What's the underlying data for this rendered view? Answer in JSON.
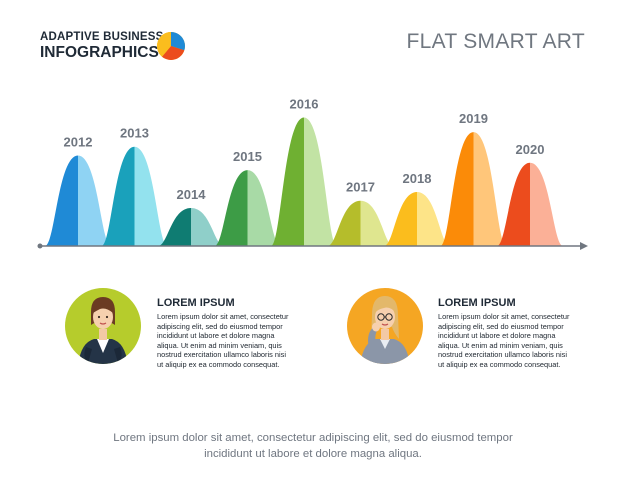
{
  "brand": {
    "line1": "ADAPTIVE BUSINESS",
    "line2": "INFOGRAPHICS"
  },
  "title": "FLAT SMART ART",
  "chart_data": {
    "type": "area",
    "xlabel": "",
    "ylabel": "",
    "ylim": [
      0,
      100
    ],
    "grid": false,
    "categories": [
      "2012",
      "2013",
      "2014",
      "2015",
      "2016",
      "2017",
      "2018",
      "2019",
      "2020"
    ],
    "values": [
      62,
      68,
      26,
      52,
      88,
      31,
      37,
      78,
      57
    ],
    "colors": [
      [
        "#1f8ad6",
        "#8fd3f3"
      ],
      [
        "#1aa1bb",
        "#93e2ee"
      ],
      [
        "#0f7c72",
        "#8fcfc9"
      ],
      [
        "#3d9c46",
        "#a8daa6"
      ],
      [
        "#6fb032",
        "#c2e3a4"
      ],
      [
        "#b5bd2b",
        "#dfe68f"
      ],
      [
        "#fbbd1d",
        "#fde488"
      ],
      [
        "#fb8b08",
        "#ffc67a"
      ],
      [
        "#ec4c1d",
        "#fbb097"
      ]
    ]
  },
  "profiles": [
    {
      "title": "LOREM IPSUM",
      "text": "Lorem ipsum dolor sit amet, consectetur\nadipiscing elit, sed do eiusmod tempor\nincididunt ut labore et dolore magna\naliqua. Ut enim ad minim veniam, quis\nnostrud exercitation ullamco laboris nisi\nut aliquip ex ea commodo consequat.",
      "circle_color": "#b6cc2c"
    },
    {
      "title": "LOREM IPSUM",
      "text": "Lorem ipsum dolor sit amet, consectetur\nadipiscing elit, sed do eiusmod tempor\nincididunt ut labore et dolore magna\naliqua. Ut enim ad minim veniam, quis\nnostrud exercitation ullamco laboris nisi\nut aliquip ex ea commodo consequat.",
      "circle_color": "#f5a623"
    }
  ],
  "footer": "Lorem ipsum dolor sit amet, consectetur adipiscing elit, sed do eiusmod tempor\nincididunt ut labore et dolore magna aliqua."
}
